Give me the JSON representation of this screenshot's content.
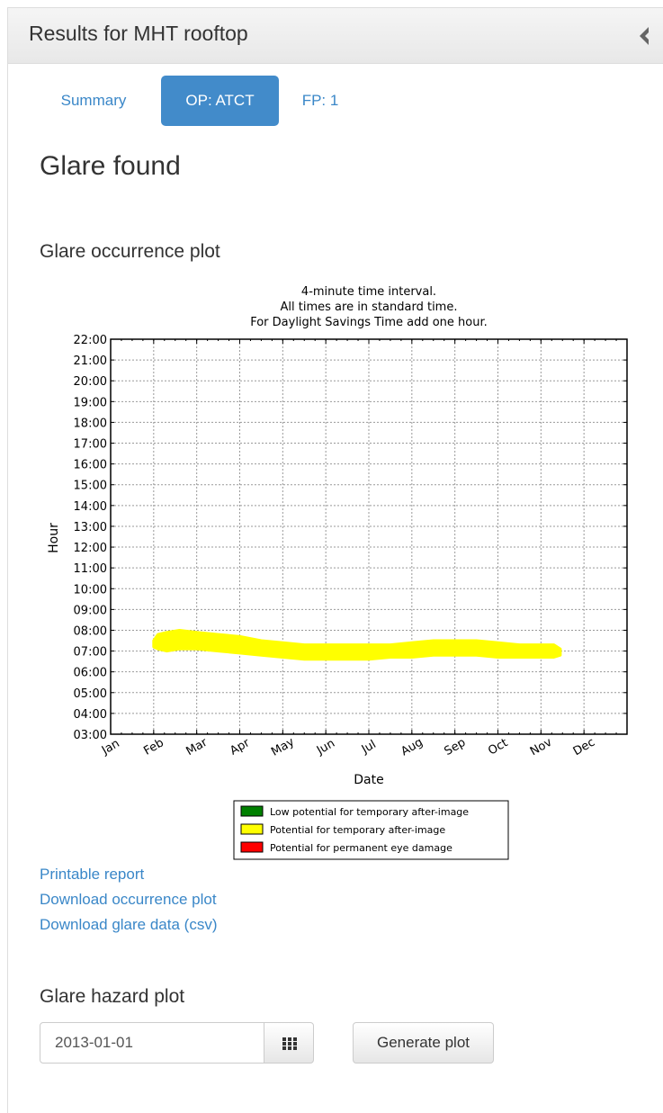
{
  "panel": {
    "title": "Results for MHT rooftop"
  },
  "tabs": [
    {
      "label": "Summary",
      "active": false
    },
    {
      "label": "OP: ATCT",
      "active": true
    },
    {
      "label": "FP: 1",
      "active": false
    }
  ],
  "result_heading": "Glare found",
  "occurrence_heading": "Glare occurrence plot",
  "chart_data": {
    "type": "area",
    "title": [
      "4-minute time interval.",
      "All times are in standard time.",
      "For Daylight Savings Time add one hour."
    ],
    "xlabel": "Date",
    "ylabel": "Hour",
    "x_ticks": [
      "Jan",
      "Feb",
      "Mar",
      "Apr",
      "May",
      "Jun",
      "Jul",
      "Aug",
      "Sep",
      "Oct",
      "Nov",
      "Dec"
    ],
    "y_ticks": [
      "03:00",
      "04:00",
      "05:00",
      "06:00",
      "07:00",
      "08:00",
      "09:00",
      "10:00",
      "11:00",
      "12:00",
      "13:00",
      "14:00",
      "15:00",
      "16:00",
      "17:00",
      "18:00",
      "19:00",
      "20:00",
      "21:00",
      "22:00"
    ],
    "ylim": [
      3,
      22
    ],
    "xlim": [
      0,
      12
    ],
    "grid": true,
    "legend_placement": "bottom-center",
    "legend": [
      {
        "label": "Low potential for temporary after-image",
        "color": "#008000"
      },
      {
        "label": "Potential for temporary after-image",
        "color": "#ffff00"
      },
      {
        "label": "Potential for permanent eye damage",
        "color": "#ff0000"
      }
    ],
    "series": [
      {
        "color": "#ffff00",
        "x": [
          1.0,
          1.1,
          1.3,
          1.6,
          2.0,
          2.5,
          3.0,
          3.5,
          4.0,
          4.5,
          5.0,
          5.5,
          6.0,
          6.5,
          7.0,
          7.5,
          8.0,
          8.5,
          9.0,
          9.5,
          10.0,
          10.3,
          10.45
        ],
        "start": [
          7.2,
          7.1,
          7.0,
          7.1,
          7.1,
          7.0,
          6.9,
          6.8,
          6.7,
          6.6,
          6.6,
          6.6,
          6.6,
          6.7,
          6.7,
          6.8,
          6.8,
          6.8,
          6.7,
          6.7,
          6.7,
          6.7,
          6.8
        ],
        "end": [
          7.5,
          7.8,
          7.9,
          8.0,
          7.9,
          7.8,
          7.7,
          7.5,
          7.4,
          7.3,
          7.3,
          7.3,
          7.3,
          7.3,
          7.4,
          7.5,
          7.5,
          7.5,
          7.4,
          7.3,
          7.3,
          7.3,
          7.1
        ]
      }
    ]
  },
  "links": [
    "Printable report",
    "Download occurrence plot",
    "Download glare data (csv)"
  ],
  "hazard_heading": "Glare hazard plot",
  "hazard": {
    "date_value": "2013-01-01",
    "generate_label": "Generate plot"
  },
  "icons": {
    "collapse": "chevron-left-icon",
    "calendar": "calendar-grid-icon"
  }
}
